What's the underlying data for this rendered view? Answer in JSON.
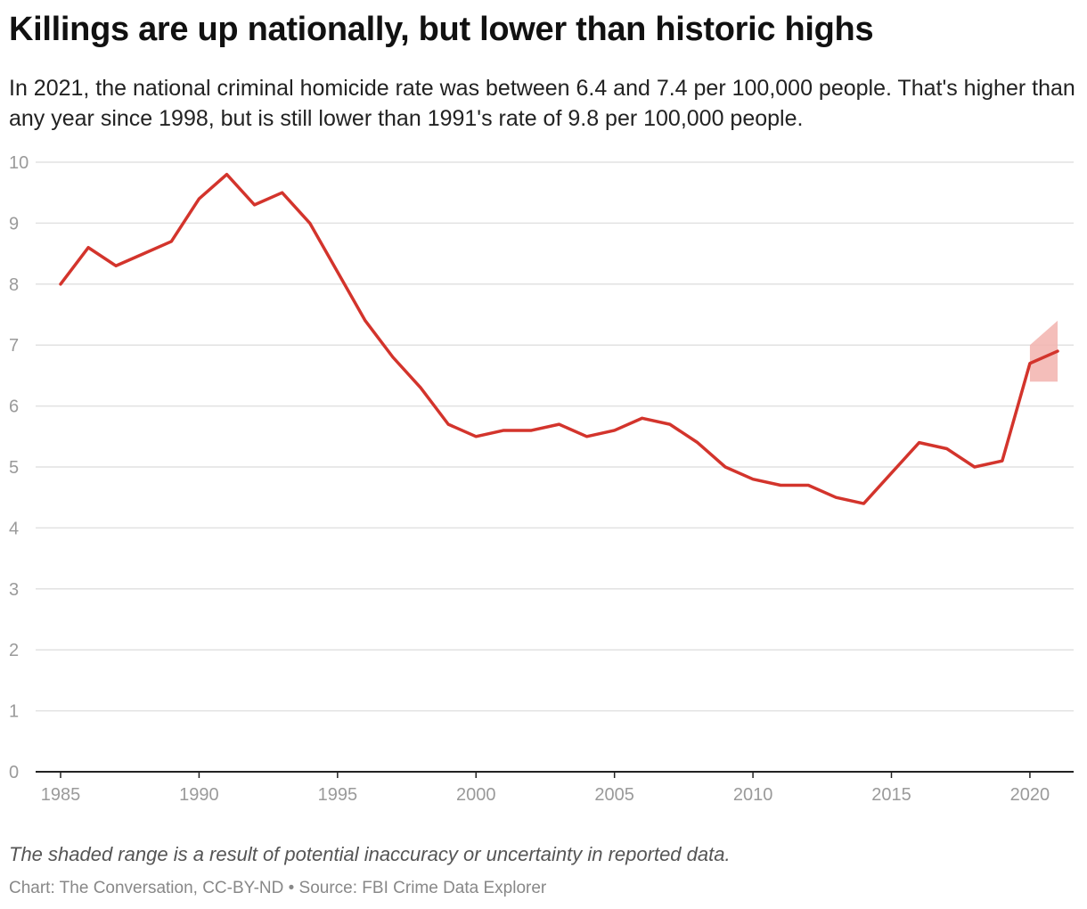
{
  "header": {
    "title": "Killings are up nationally, but lower than historic highs",
    "subtitle": "In 2021, the national criminal homicide rate was between 6.4 and 7.4 per 100,000 people. That's higher than any year since 1998, but is still lower than 1991's rate of 9.8 per 100,000 people."
  },
  "footer": {
    "note": "The shaded range is a result of potential inaccuracy or uncertainty in reported data.",
    "credit": "Chart: The Conversation, CC-BY-ND • Source: FBI Crime Data Explorer"
  },
  "colors": {
    "line": "#d3342c",
    "band": "#f2b3ae",
    "grid": "#e2e2e2",
    "axis": "#222222",
    "tick": "#9a9a9a"
  },
  "chart_data": {
    "type": "line",
    "title": "Killings are up nationally, but lower than historic highs",
    "xlabel": "",
    "ylabel": "",
    "xlim": [
      1985,
      2021
    ],
    "ylim": [
      0,
      10
    ],
    "x_ticks": [
      1985,
      1990,
      1995,
      2000,
      2005,
      2010,
      2015,
      2020
    ],
    "y_ticks": [
      0,
      1,
      2,
      3,
      4,
      5,
      6,
      7,
      8,
      9,
      10
    ],
    "grid": true,
    "series": [
      {
        "x": [
          1985,
          1986,
          1987,
          1988,
          1989,
          1990,
          1991,
          1992,
          1993,
          1994,
          1995,
          1996,
          1997,
          1998,
          1999,
          2000,
          2001,
          2002,
          2003,
          2004,
          2005,
          2006,
          2007,
          2008,
          2009,
          2010,
          2011,
          2012,
          2013,
          2014,
          2015,
          2016,
          2017,
          2018,
          2019,
          2020,
          2021
        ],
        "values": [
          8.0,
          8.6,
          8.3,
          8.5,
          8.7,
          9.4,
          9.8,
          9.3,
          9.5,
          9.0,
          8.2,
          7.4,
          6.8,
          6.3,
          5.7,
          5.5,
          5.6,
          5.6,
          5.7,
          5.5,
          5.6,
          5.8,
          5.7,
          5.4,
          5.0,
          4.8,
          4.7,
          4.7,
          4.5,
          4.4,
          4.9,
          5.4,
          5.3,
          5.0,
          5.1,
          6.7,
          6.9
        ]
      }
    ],
    "uncertainty_band": {
      "x": [
        2020,
        2021
      ],
      "lower": [
        6.4,
        6.4
      ],
      "upper": [
        7.0,
        7.4
      ]
    }
  }
}
